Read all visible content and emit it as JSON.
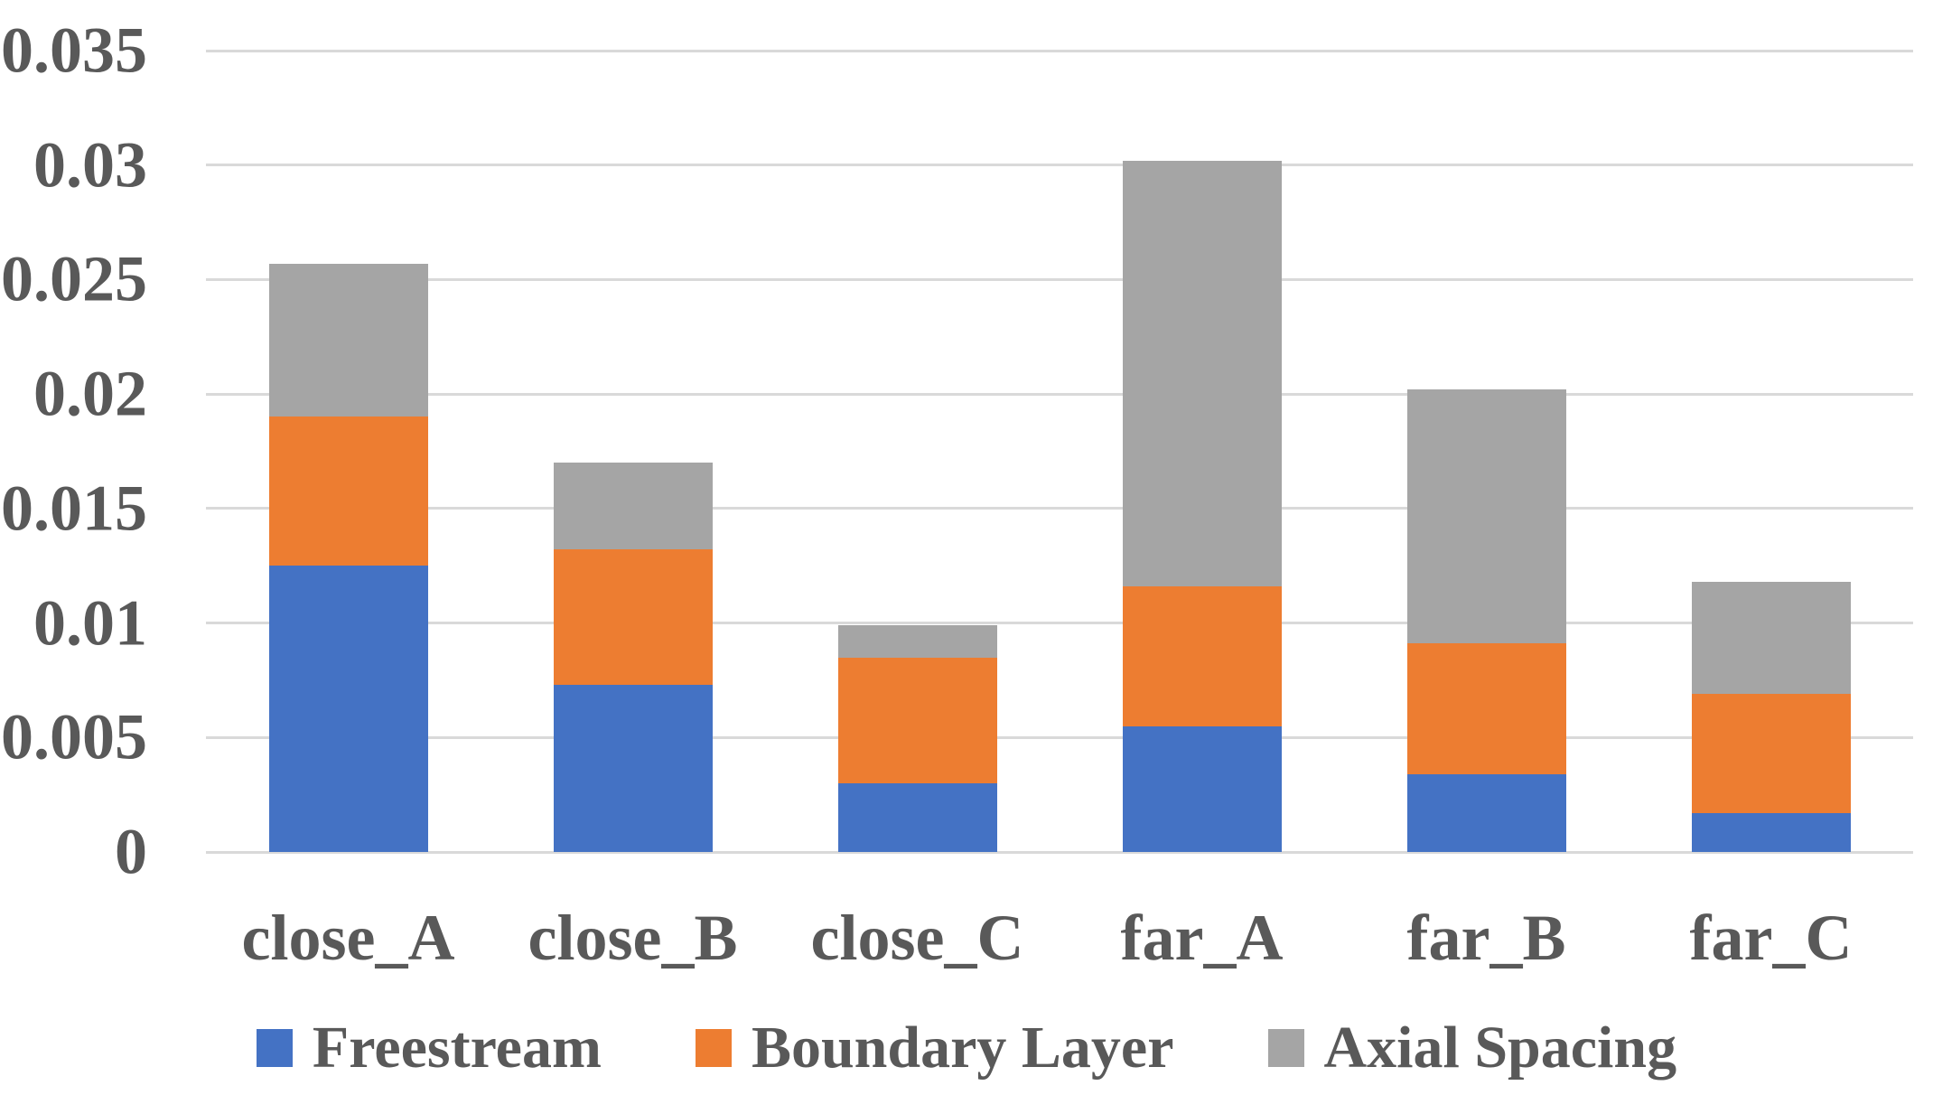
{
  "chart_data": {
    "type": "bar",
    "stacked": true,
    "title": "",
    "xlabel": "",
    "ylabel": "",
    "categories": [
      "close_A",
      "close_B",
      "close_C",
      "far_A",
      "far_B",
      "far_C"
    ],
    "series": [
      {
        "name": "Freestream",
        "color": "#4472C4",
        "values": [
          0.0125,
          0.0073,
          0.003,
          0.0055,
          0.0034,
          0.0017
        ]
      },
      {
        "name": "Boundary Layer",
        "color": "#ED7D31",
        "values": [
          0.0065,
          0.0059,
          0.0055,
          0.0061,
          0.0057,
          0.0052
        ]
      },
      {
        "name": "Axial Spacing",
        "color": "#A5A5A5",
        "values": [
          0.0067,
          0.0038,
          0.0014,
          0.0186,
          0.0111,
          0.0049
        ]
      }
    ],
    "stacked_totals": [
      0.0257,
      0.017,
      0.0099,
      0.0302,
      0.0202,
      0.0118
    ],
    "ylim": [
      0,
      0.035
    ],
    "ytick_step": 0.005,
    "ytick_labels": [
      "0",
      "0.005",
      "0.01",
      "0.015",
      "0.02",
      "0.025",
      "0.03",
      "0.035"
    ],
    "grid": true,
    "legend_position": "bottom"
  },
  "styles": {
    "background": "#FFFFFF",
    "text_color": "#595959",
    "gridline_color": "#D9D9D9",
    "freestream_color": "#4472C4",
    "boundary_layer_color": "#ED7D31",
    "axial_spacing_color": "#A5A5A5"
  }
}
